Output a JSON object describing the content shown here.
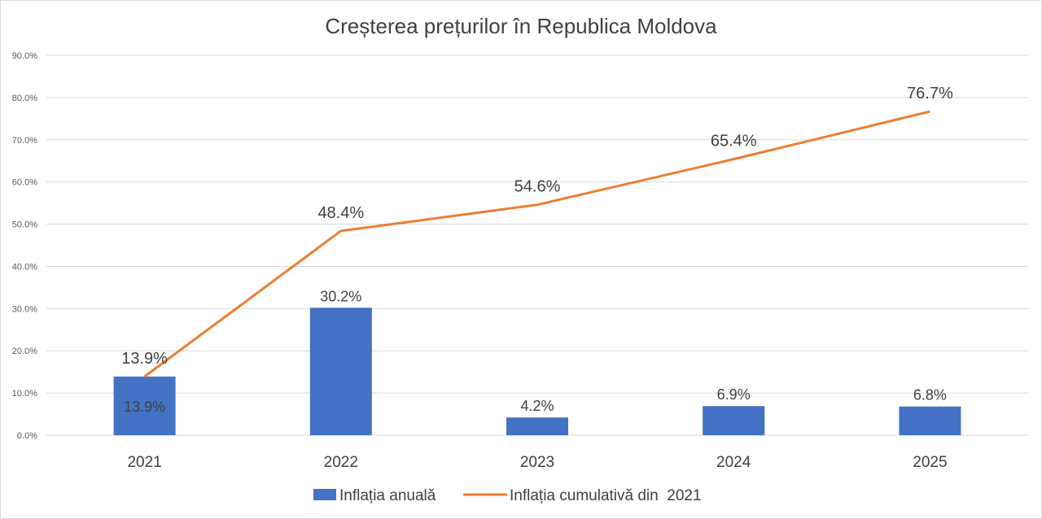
{
  "chart_data": {
    "type": "bar",
    "title": "Creșterea prețurilor în Republica Moldova",
    "categories": [
      "2021",
      "2022",
      "2023",
      "2024",
      "2025"
    ],
    "ylim": [
      0,
      90
    ],
    "yticks": [
      "0.0%",
      "10.0%",
      "20.0%",
      "30.0%",
      "40.0%",
      "50.0%",
      "60.0%",
      "70.0%",
      "80.0%",
      "90.0%"
    ],
    "grid": true,
    "legend_position": "bottom",
    "series": [
      {
        "name": "Inflația anuală",
        "type": "bar",
        "color": "#4472c4",
        "values": [
          13.9,
          30.2,
          4.2,
          6.9,
          6.8
        ],
        "labels": [
          "13.9%",
          "30.2%",
          "4.2%",
          "6.9%",
          "6.8%"
        ]
      },
      {
        "name": "Inflația cumulativă din  2021",
        "type": "line",
        "color": "#ed7d31",
        "values": [
          13.9,
          48.4,
          54.6,
          65.4,
          76.7
        ],
        "labels": [
          "13.9%",
          "48.4%",
          "54.6%",
          "65.4%",
          "76.7%"
        ]
      }
    ]
  }
}
